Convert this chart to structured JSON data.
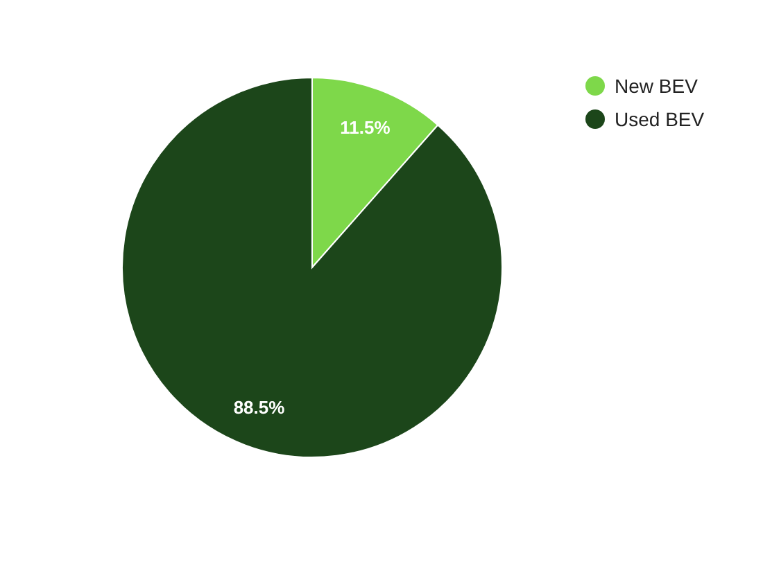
{
  "chart_data": {
    "type": "pie",
    "categories": [
      "New BEV",
      "Used BEV"
    ],
    "values": [
      11.5,
      88.5
    ],
    "colors": [
      "#7ed84a",
      "#1c461a"
    ],
    "value_labels": [
      "11.5%",
      "88.5%"
    ],
    "legend": "top right"
  }
}
